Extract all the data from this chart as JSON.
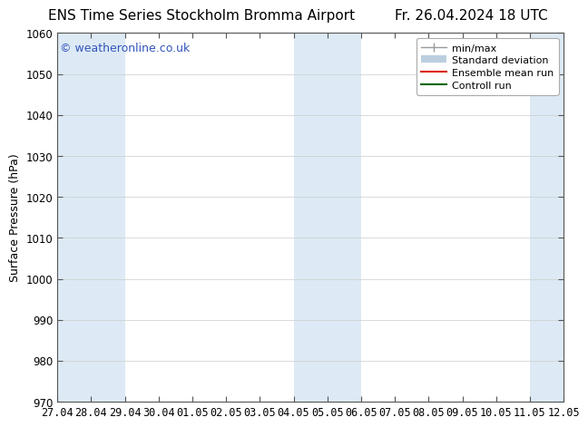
{
  "title_left": "ENS Time Series Stockholm Bromma Airport",
  "title_right": "Fr. 26.04.2024 18 UTC",
  "ylabel": "Surface Pressure (hPa)",
  "ylim": [
    970,
    1060
  ],
  "yticks": [
    970,
    980,
    990,
    1000,
    1010,
    1020,
    1030,
    1040,
    1050,
    1060
  ],
  "xtick_labels": [
    "27.04",
    "28.04",
    "29.04",
    "30.04",
    "01.05",
    "02.05",
    "03.05",
    "04.05",
    "05.05",
    "06.05",
    "07.05",
    "08.05",
    "09.05",
    "10.05",
    "11.05",
    "12.05"
  ],
  "background_color": "#ffffff",
  "plot_bg_color": "#ffffff",
  "shaded_band_color": "#ddeaf5",
  "watermark_text": "© weatheronline.co.uk",
  "watermark_color": "#3355bb",
  "shaded_intervals": [
    0,
    1,
    7,
    8,
    14
  ],
  "legend_labels": [
    "min/max",
    "Standard deviation",
    "Ensemble mean run",
    "Controll run"
  ],
  "legend_colors": [
    "#999999",
    "#bbcfe0",
    "#dd2200",
    "#006600"
  ],
  "title_fontsize": 11,
  "tick_label_fontsize": 8.5,
  "axis_label_fontsize": 9,
  "watermark_fontsize": 9,
  "legend_fontsize": 8
}
